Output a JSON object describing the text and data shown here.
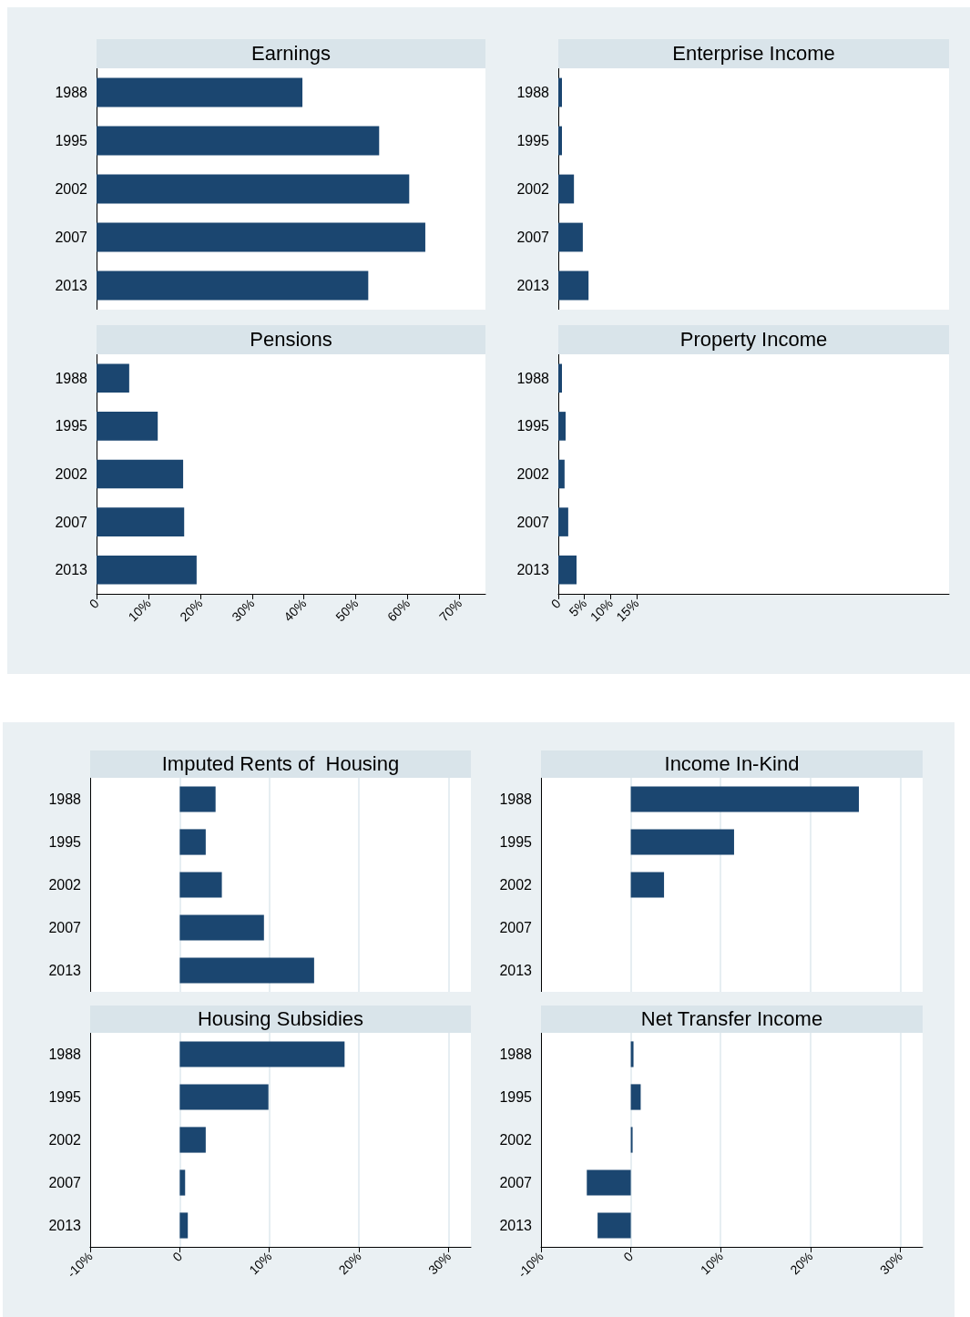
{
  "chart_data": [
    {
      "type": "bar",
      "orientation": "horizontal",
      "title": "Earnings",
      "categories": [
        "1988",
        "1995",
        "2002",
        "2007",
        "2013"
      ],
      "values": [
        39.7,
        54.5,
        60.3,
        63.4,
        52.4
      ],
      "color": "#1b4670",
      "xlim": [
        0,
        75
      ],
      "tick_labels": "y",
      "grid": false
    },
    {
      "type": "bar",
      "orientation": "horizontal",
      "title": "Enterprise Income",
      "categories": [
        "1988",
        "1995",
        "2002",
        "2007",
        "2013"
      ],
      "values": [
        0.7,
        0.7,
        3.0,
        4.7,
        5.8
      ],
      "color": "#1b4670",
      "xlim": [
        0,
        75
      ],
      "tick_labels": "y",
      "grid": false
    },
    {
      "type": "bar",
      "orientation": "horizontal",
      "title": "Pensions",
      "categories": [
        "1988",
        "1995",
        "2002",
        "2007",
        "2013"
      ],
      "values": [
        6.3,
        11.8,
        16.7,
        16.9,
        19.3
      ],
      "color": "#1b4670",
      "xlim": [
        0,
        75
      ],
      "xticks": [
        0,
        {
          "value": 10,
          "label": "10%"
        },
        {
          "value": 20,
          "label": "20%"
        },
        {
          "value": 30,
          "label": "30%"
        },
        {
          "value": 40,
          "label": "40%"
        },
        {
          "value": 50,
          "label": "50%"
        },
        {
          "value": 60,
          "label": "60%"
        },
        {
          "value": 70,
          "label": "70%"
        }
      ],
      "grid": false
    },
    {
      "type": "bar",
      "orientation": "horizontal",
      "title": "Property Income",
      "categories": [
        "1988",
        "1995",
        "2002",
        "2007",
        "2013"
      ],
      "values": [
        0.7,
        1.4,
        1.2,
        1.9,
        3.5
      ],
      "color": "#1b4670",
      "xlim": [
        0,
        75
      ],
      "xticks": [
        0,
        {
          "value": 5,
          "label": "5%"
        },
        {
          "value": 10,
          "label": "10%"
        },
        {
          "value": 15,
          "label": "15%"
        }
      ],
      "grid": false
    },
    {
      "type": "bar",
      "orientation": "horizontal",
      "title": "Imputed Rents of  Housing",
      "categories": [
        "1988",
        "1995",
        "2002",
        "2007",
        "2013"
      ],
      "values": [
        4.0,
        2.9,
        4.7,
        9.4,
        15.0
      ],
      "color": "#1b4670",
      "xlim": [
        -10,
        32.5
      ],
      "xticks": [
        -10,
        0,
        10,
        20,
        30
      ],
      "tick_labels": "y",
      "grid": "x"
    },
    {
      "type": "bar",
      "orientation": "horizontal",
      "title": "Income In-Kind",
      "categories": [
        "1988",
        "1995",
        "2002",
        "2007",
        "2013"
      ],
      "values": [
        25.4,
        11.5,
        3.7,
        null,
        null
      ],
      "color": "#1b4670",
      "xlim": [
        -10,
        32.5
      ],
      "xticks": [
        -10,
        0,
        10,
        20,
        30
      ],
      "tick_labels": "y",
      "grid": "x"
    },
    {
      "type": "bar",
      "orientation": "horizontal",
      "title": "Housing Subsidies",
      "categories": [
        "1988",
        "1995",
        "2002",
        "2007",
        "2013"
      ],
      "values": [
        18.4,
        9.9,
        2.9,
        0.6,
        0.9
      ],
      "color": "#1b4670",
      "xlim": [
        -10,
        32.5
      ],
      "xticks": [
        {
          "value": -10,
          "label": "-10%"
        },
        0,
        {
          "value": 10,
          "label": "10%"
        },
        {
          "value": 20,
          "label": "20%"
        },
        {
          "value": 30,
          "label": "30%"
        }
      ],
      "grid": "x"
    },
    {
      "type": "bar",
      "orientation": "horizontal",
      "title": "Net Transfer Income",
      "categories": [
        "1988",
        "1995",
        "2002",
        "2007",
        "2013"
      ],
      "values": [
        0.3,
        1.1,
        0.2,
        -4.9,
        -3.7
      ],
      "color": "#1b4670",
      "xlim": [
        -10,
        32.5
      ],
      "xticks": [
        {
          "value": -10,
          "label": "-10%"
        },
        0,
        {
          "value": 10,
          "label": "10%"
        },
        {
          "value": 20,
          "label": "20%"
        },
        {
          "value": 30,
          "label": "30%"
        }
      ],
      "grid": "x"
    }
  ]
}
